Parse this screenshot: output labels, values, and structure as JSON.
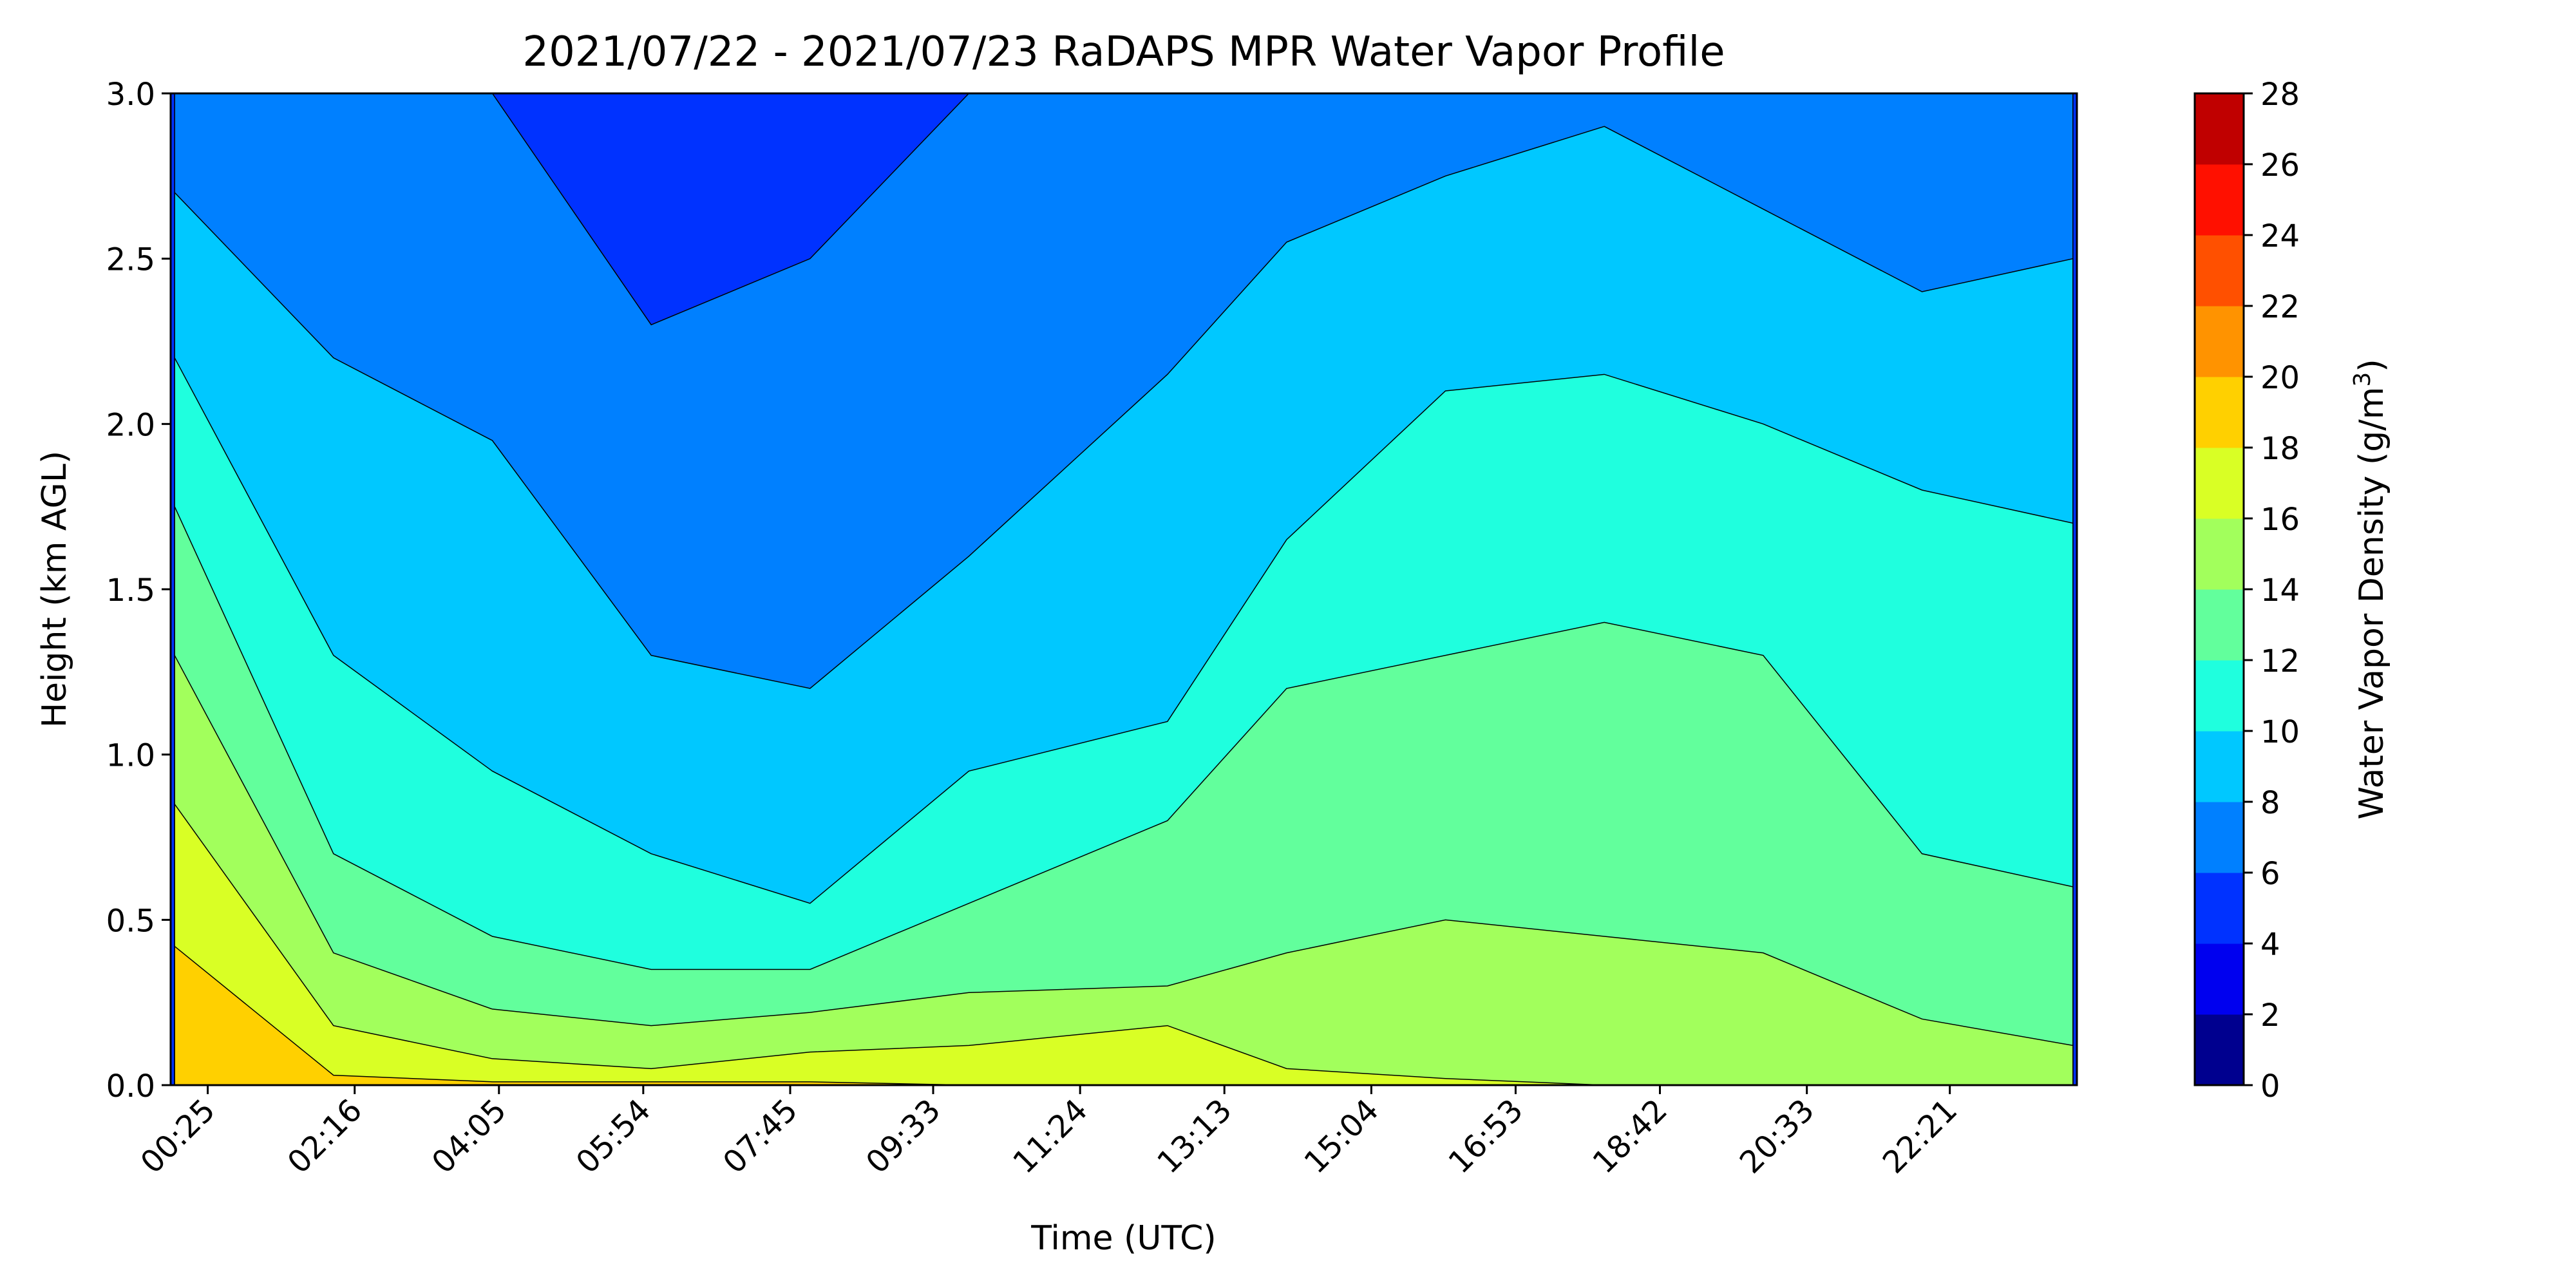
{
  "chart_data": {
    "type": "heatmap",
    "subtype": "filled-contour",
    "title": "2021/07/22 - 2021/07/23 RaDAPS MPR Water Vapor Profile",
    "xlabel": "Time (UTC)",
    "ylabel": "Height (km AGL)",
    "x_tick_labels": [
      "00:25",
      "02:16",
      "04:05",
      "05:54",
      "07:45",
      "09:33",
      "11:24",
      "13:13",
      "15:04",
      "16:53",
      "18:42",
      "20:33",
      "22:21"
    ],
    "x_tick_hours": [
      0.4167,
      2.2667,
      4.0833,
      5.9,
      7.75,
      9.55,
      11.4,
      13.2167,
      15.0667,
      16.8833,
      18.7,
      20.55,
      22.35
    ],
    "xlim_hours": [
      -0.05,
      23.95
    ],
    "ylim": [
      0,
      3.0
    ],
    "y_ticks": [
      0.0,
      0.5,
      1.0,
      1.5,
      2.0,
      2.5,
      3.0
    ],
    "y_tick_labels": [
      "0.0",
      "0.5",
      "1.0",
      "1.5",
      "2.0",
      "2.5",
      "3.0"
    ],
    "colorbar": {
      "label_main": "Water Vapor Density (g/m",
      "label_sup": "3",
      "label_end": ")",
      "levels": [
        0,
        2,
        4,
        6,
        8,
        10,
        12,
        14,
        16,
        18,
        20,
        22,
        24,
        26,
        28
      ],
      "tick_labels": [
        "0",
        "2",
        "4",
        "6",
        "8",
        "10",
        "12",
        "14",
        "16",
        "18",
        "20",
        "22",
        "24",
        "26",
        "28"
      ],
      "colors": [
        "#00008f",
        "#0000ef",
        "#0032ff",
        "#0080ff",
        "#00c8ff",
        "#1fffde",
        "#62ff9c",
        "#a2ff5c",
        "#d9ff25",
        "#ffd000",
        "#ff9300",
        "#ff5000",
        "#ff1000",
        "#c00000"
      ]
    },
    "contour_boundaries_km": {
      "x_hours": [
        0.0,
        2.0,
        4.0,
        6.0,
        8.0,
        10.0,
        12.5,
        14.0,
        16.0,
        18.0,
        20.0,
        22.0,
        23.9
      ],
      "lvl_18": [
        0.42,
        0.03,
        0.01,
        0.01,
        0.01,
        0.0,
        0.0,
        0.0,
        0.0,
        0.0,
        0.0,
        0.0,
        0.0
      ],
      "lvl_16": [
        0.85,
        0.18,
        0.08,
        0.05,
        0.1,
        0.12,
        0.18,
        0.05,
        0.02,
        0.0,
        0.0,
        0.0,
        0.0
      ],
      "lvl_14": [
        1.3,
        0.4,
        0.23,
        0.18,
        0.22,
        0.28,
        0.3,
        0.4,
        0.5,
        0.45,
        0.4,
        0.2,
        0.12
      ],
      "lvl_12": [
        1.75,
        0.7,
        0.45,
        0.35,
        0.35,
        0.55,
        0.8,
        1.2,
        1.3,
        1.4,
        1.3,
        0.7,
        0.6
      ],
      "lvl_10": [
        2.2,
        1.3,
        0.95,
        0.7,
        0.55,
        0.95,
        1.1,
        1.65,
        2.1,
        2.15,
        2.0,
        1.8,
        1.7
      ],
      "lvl_8": [
        2.7,
        2.2,
        1.95,
        1.3,
        1.2,
        1.6,
        2.15,
        2.55,
        2.75,
        2.9,
        2.65,
        2.4,
        2.5
      ],
      "lvl_6": [
        3.0,
        3.0,
        3.0,
        2.3,
        2.5,
        3.0,
        3.0,
        3.0,
        3.0,
        3.0,
        3.0,
        3.0,
        3.0
      ]
    },
    "grid": false,
    "legend": "colorbar-right"
  }
}
